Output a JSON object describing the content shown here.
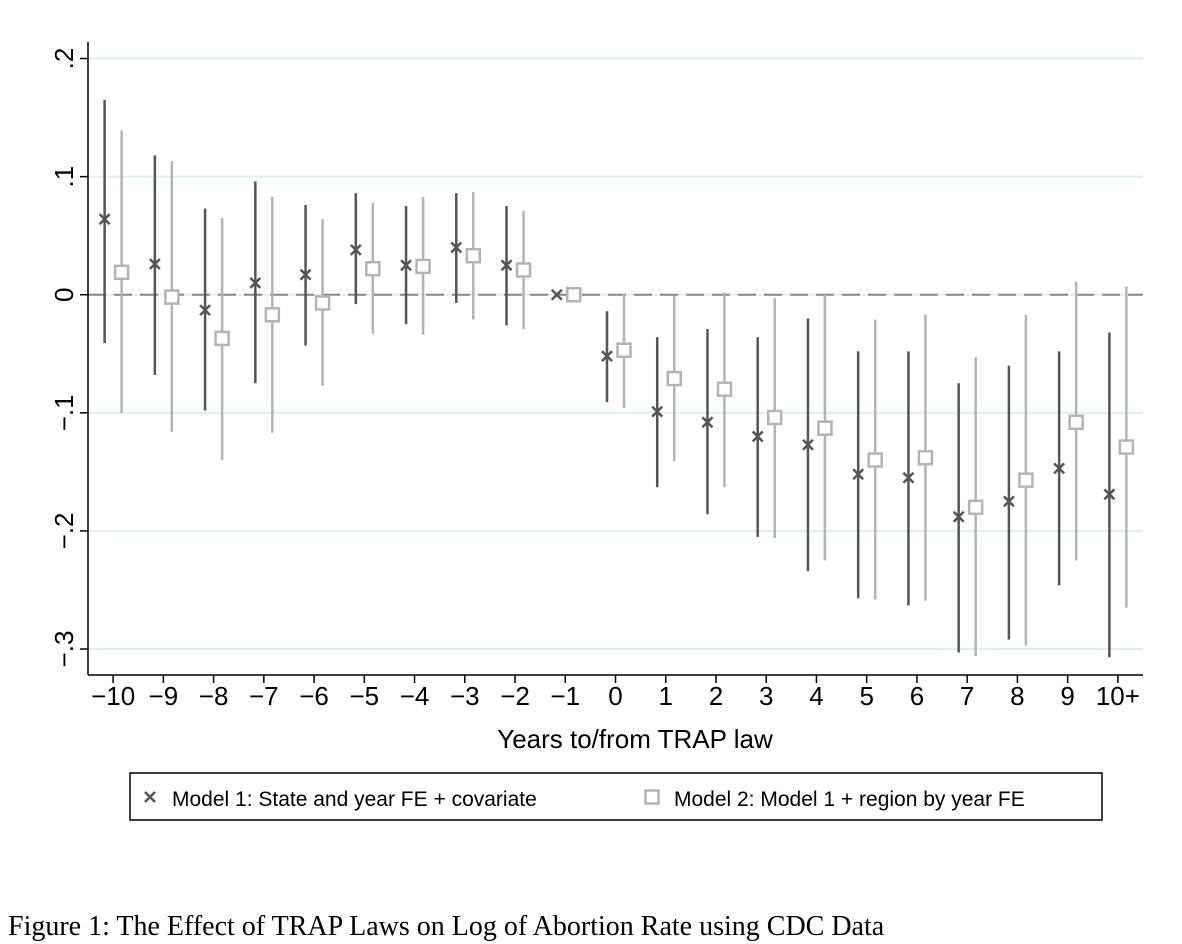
{
  "chart_data": {
    "type": "errorbar",
    "x_label": "Years to/from TRAP law",
    "caption": "Figure 1: The Effect of TRAP Laws on Log of Abortion Rate using CDC Data",
    "categories": [
      "−10",
      "−9",
      "−8",
      "−7",
      "−6",
      "−5",
      "−4",
      "−3",
      "−2",
      "−1",
      "0",
      "1",
      "2",
      "3",
      "4",
      "5",
      "6",
      "7",
      "8",
      "9",
      "10+"
    ],
    "ylim": [
      -0.322,
      0.214
    ],
    "yticks": [
      {
        "value": -0.3,
        "label": "−.3"
      },
      {
        "value": -0.2,
        "label": "−.2"
      },
      {
        "value": -0.1,
        "label": "−.1"
      },
      0,
      {
        "value": 0.1,
        "label": ".1"
      },
      {
        "value": 0.2,
        "label": ".2"
      }
    ],
    "grid": true,
    "reference_line": 0,
    "series": [
      {
        "name": "Model 1: State and year FE + covariate",
        "color": "#555555",
        "marker": "x",
        "values": [
          0.064,
          0.026,
          -0.013,
          0.01,
          0.017,
          0.038,
          0.025,
          0.04,
          0.025,
          0,
          -0.052,
          -0.099,
          -0.108,
          -0.12,
          -0.127,
          -0.152,
          -0.155,
          -0.188,
          -0.175,
          -0.147,
          -0.169
        ],
        "lower": [
          -0.041,
          -0.068,
          -0.098,
          -0.075,
          -0.043,
          -0.008,
          -0.025,
          -0.007,
          -0.026,
          0,
          -0.091,
          -0.163,
          -0.186,
          -0.205,
          -0.234,
          -0.257,
          -0.263,
          -0.303,
          -0.292,
          -0.246,
          -0.307
        ],
        "upper": [
          0.165,
          0.118,
          0.073,
          0.096,
          0.076,
          0.086,
          0.075,
          0.086,
          0.075,
          0,
          -0.014,
          -0.036,
          -0.029,
          -0.036,
          -0.02,
          -0.048,
          -0.048,
          -0.075,
          -0.06,
          -0.048,
          -0.032
        ]
      },
      {
        "name": "Model 2: Model 1 + region by year FE",
        "color": "#b4b4b4",
        "marker": "square",
        "values": [
          0.019,
          -0.002,
          -0.037,
          -0.017,
          -0.007,
          0.022,
          0.024,
          0.033,
          0.021,
          0,
          -0.047,
          -0.071,
          -0.08,
          -0.104,
          -0.113,
          -0.14,
          -0.138,
          -0.18,
          -0.157,
          -0.108,
          -0.129
        ],
        "lower": [
          -0.1,
          -0.116,
          -0.14,
          -0.117,
          -0.077,
          -0.033,
          -0.034,
          -0.021,
          -0.029,
          0,
          -0.096,
          -0.141,
          -0.163,
          -0.206,
          -0.225,
          -0.258,
          -0.259,
          -0.306,
          -0.297,
          -0.225,
          -0.265
        ],
        "upper": [
          0.139,
          0.113,
          0.065,
          0.083,
          0.064,
          0.078,
          0.083,
          0.087,
          0.071,
          0,
          0.001,
          -0.001,
          0.002,
          -0.003,
          0,
          -0.021,
          -0.017,
          -0.053,
          -0.017,
          0.011,
          0.007
        ]
      }
    ]
  }
}
